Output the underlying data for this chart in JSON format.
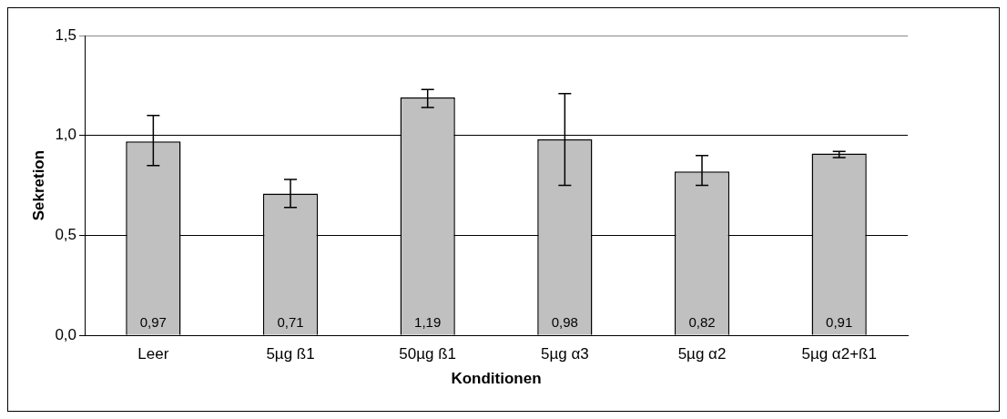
{
  "chart_data": {
    "type": "bar",
    "xlabel": "Konditionen",
    "ylabel": "Sekretion",
    "categories": [
      "Leer",
      "5µg ß1",
      "50µg ß1",
      "5µg α3",
      "5µg α2",
      "5µg α2+ß1"
    ],
    "values": [
      0.97,
      0.71,
      1.19,
      0.98,
      0.82,
      0.91
    ],
    "value_labels": [
      "0,97",
      "0,71",
      "1,19",
      "0,98",
      "0,82",
      "0,91"
    ],
    "errors": [
      [
        0.85,
        1.1
      ],
      [
        0.64,
        0.78
      ],
      [
        1.14,
        1.23
      ],
      [
        0.75,
        1.21
      ],
      [
        0.75,
        0.9
      ],
      [
        0.89,
        0.92
      ]
    ],
    "color": "#c0c0c0",
    "ylim": [
      0,
      1.5
    ],
    "yticks": [
      {
        "value": 0,
        "label": "0,0"
      },
      {
        "value": 0.5,
        "label": "0,5"
      },
      {
        "value": 1,
        "label": "1,0"
      },
      {
        "value": 1.5,
        "label": "1,5"
      }
    ],
    "grid": "y",
    "legend": false
  }
}
